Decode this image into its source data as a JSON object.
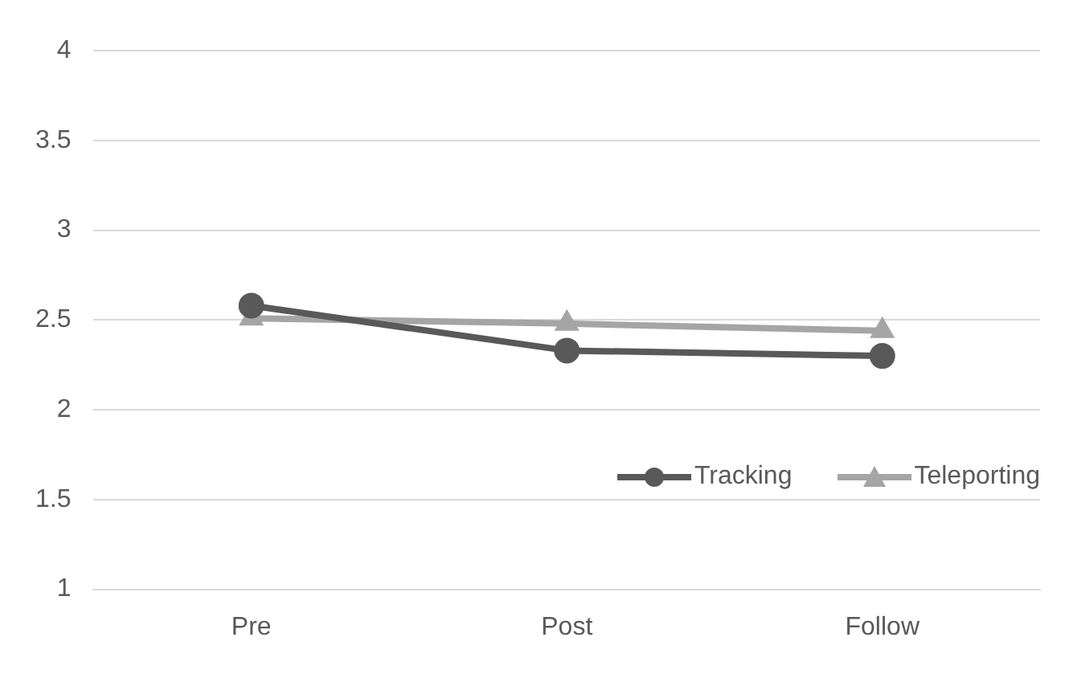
{
  "chart_data": {
    "type": "line",
    "categories": [
      "Pre",
      "Post",
      "Follow"
    ],
    "series": [
      {
        "name": "Tracking",
        "color": "#595959",
        "values": [
          2.58,
          2.33,
          2.3
        ],
        "marker": "circle"
      },
      {
        "name": "Teleporting",
        "color": "#a5a5a5",
        "values": [
          2.51,
          2.48,
          2.44
        ],
        "marker": "triangle"
      }
    ],
    "ylim": [
      1,
      4
    ],
    "yticks": [
      1,
      1.5,
      2,
      2.5,
      3,
      3.5,
      4
    ],
    "grid": "y",
    "legend": "bottom right",
    "line_style": "solid"
  }
}
